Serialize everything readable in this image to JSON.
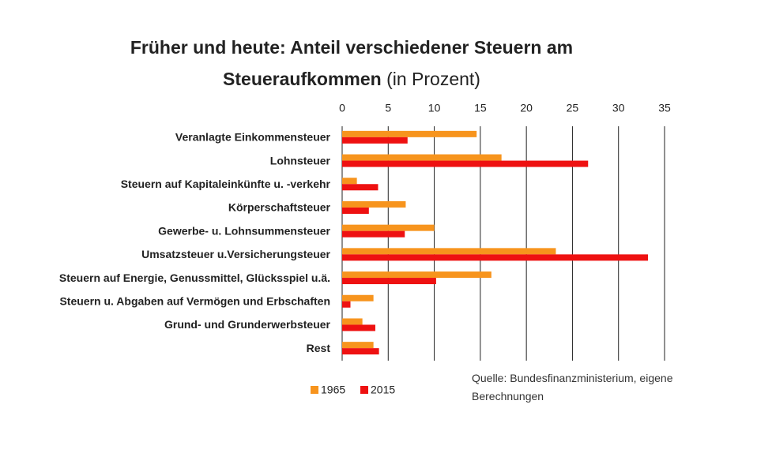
{
  "chart_data": {
    "type": "hbar",
    "title": "Früher und heute: Anteil verschiedener Steuern am Steueraufkommen",
    "subtitle": "(in Prozent)",
    "source": "Quelle: Bundesfinanzministerium, eigene Berechnungen",
    "categories": [
      "Veranlagte Einkommensteuer",
      "Lohnsteuer",
      "Steuern auf Kapitaleinkünfte u. -verkehr",
      "Körperschaftsteuer",
      "Gewerbe- u. Lohnsummensteuer",
      "Umsatzsteuer u.Versicherungsteuer",
      "Steuern auf Energie, Genussmittel, Glücksspiel u.ä.",
      "Steuern u. Abgaben auf Vermögen und Erbschaften",
      "Grund- und Grunderwerbsteuer",
      "Rest"
    ],
    "series": [
      {
        "name": "1965",
        "color": "#f7941d",
        "values": [
          14.6,
          17.3,
          1.6,
          6.9,
          10.0,
          23.2,
          16.2,
          3.4,
          2.2,
          3.4
        ]
      },
      {
        "name": "2015",
        "color": "#ee1111",
        "values": [
          7.1,
          26.7,
          3.9,
          2.9,
          6.8,
          33.2,
          10.2,
          0.9,
          3.6,
          4.0
        ]
      }
    ],
    "xlim": [
      0,
      35
    ],
    "xticks": [
      0,
      5,
      10,
      15,
      20,
      25,
      30,
      35
    ],
    "grid": true,
    "legend": "bottom-left"
  }
}
